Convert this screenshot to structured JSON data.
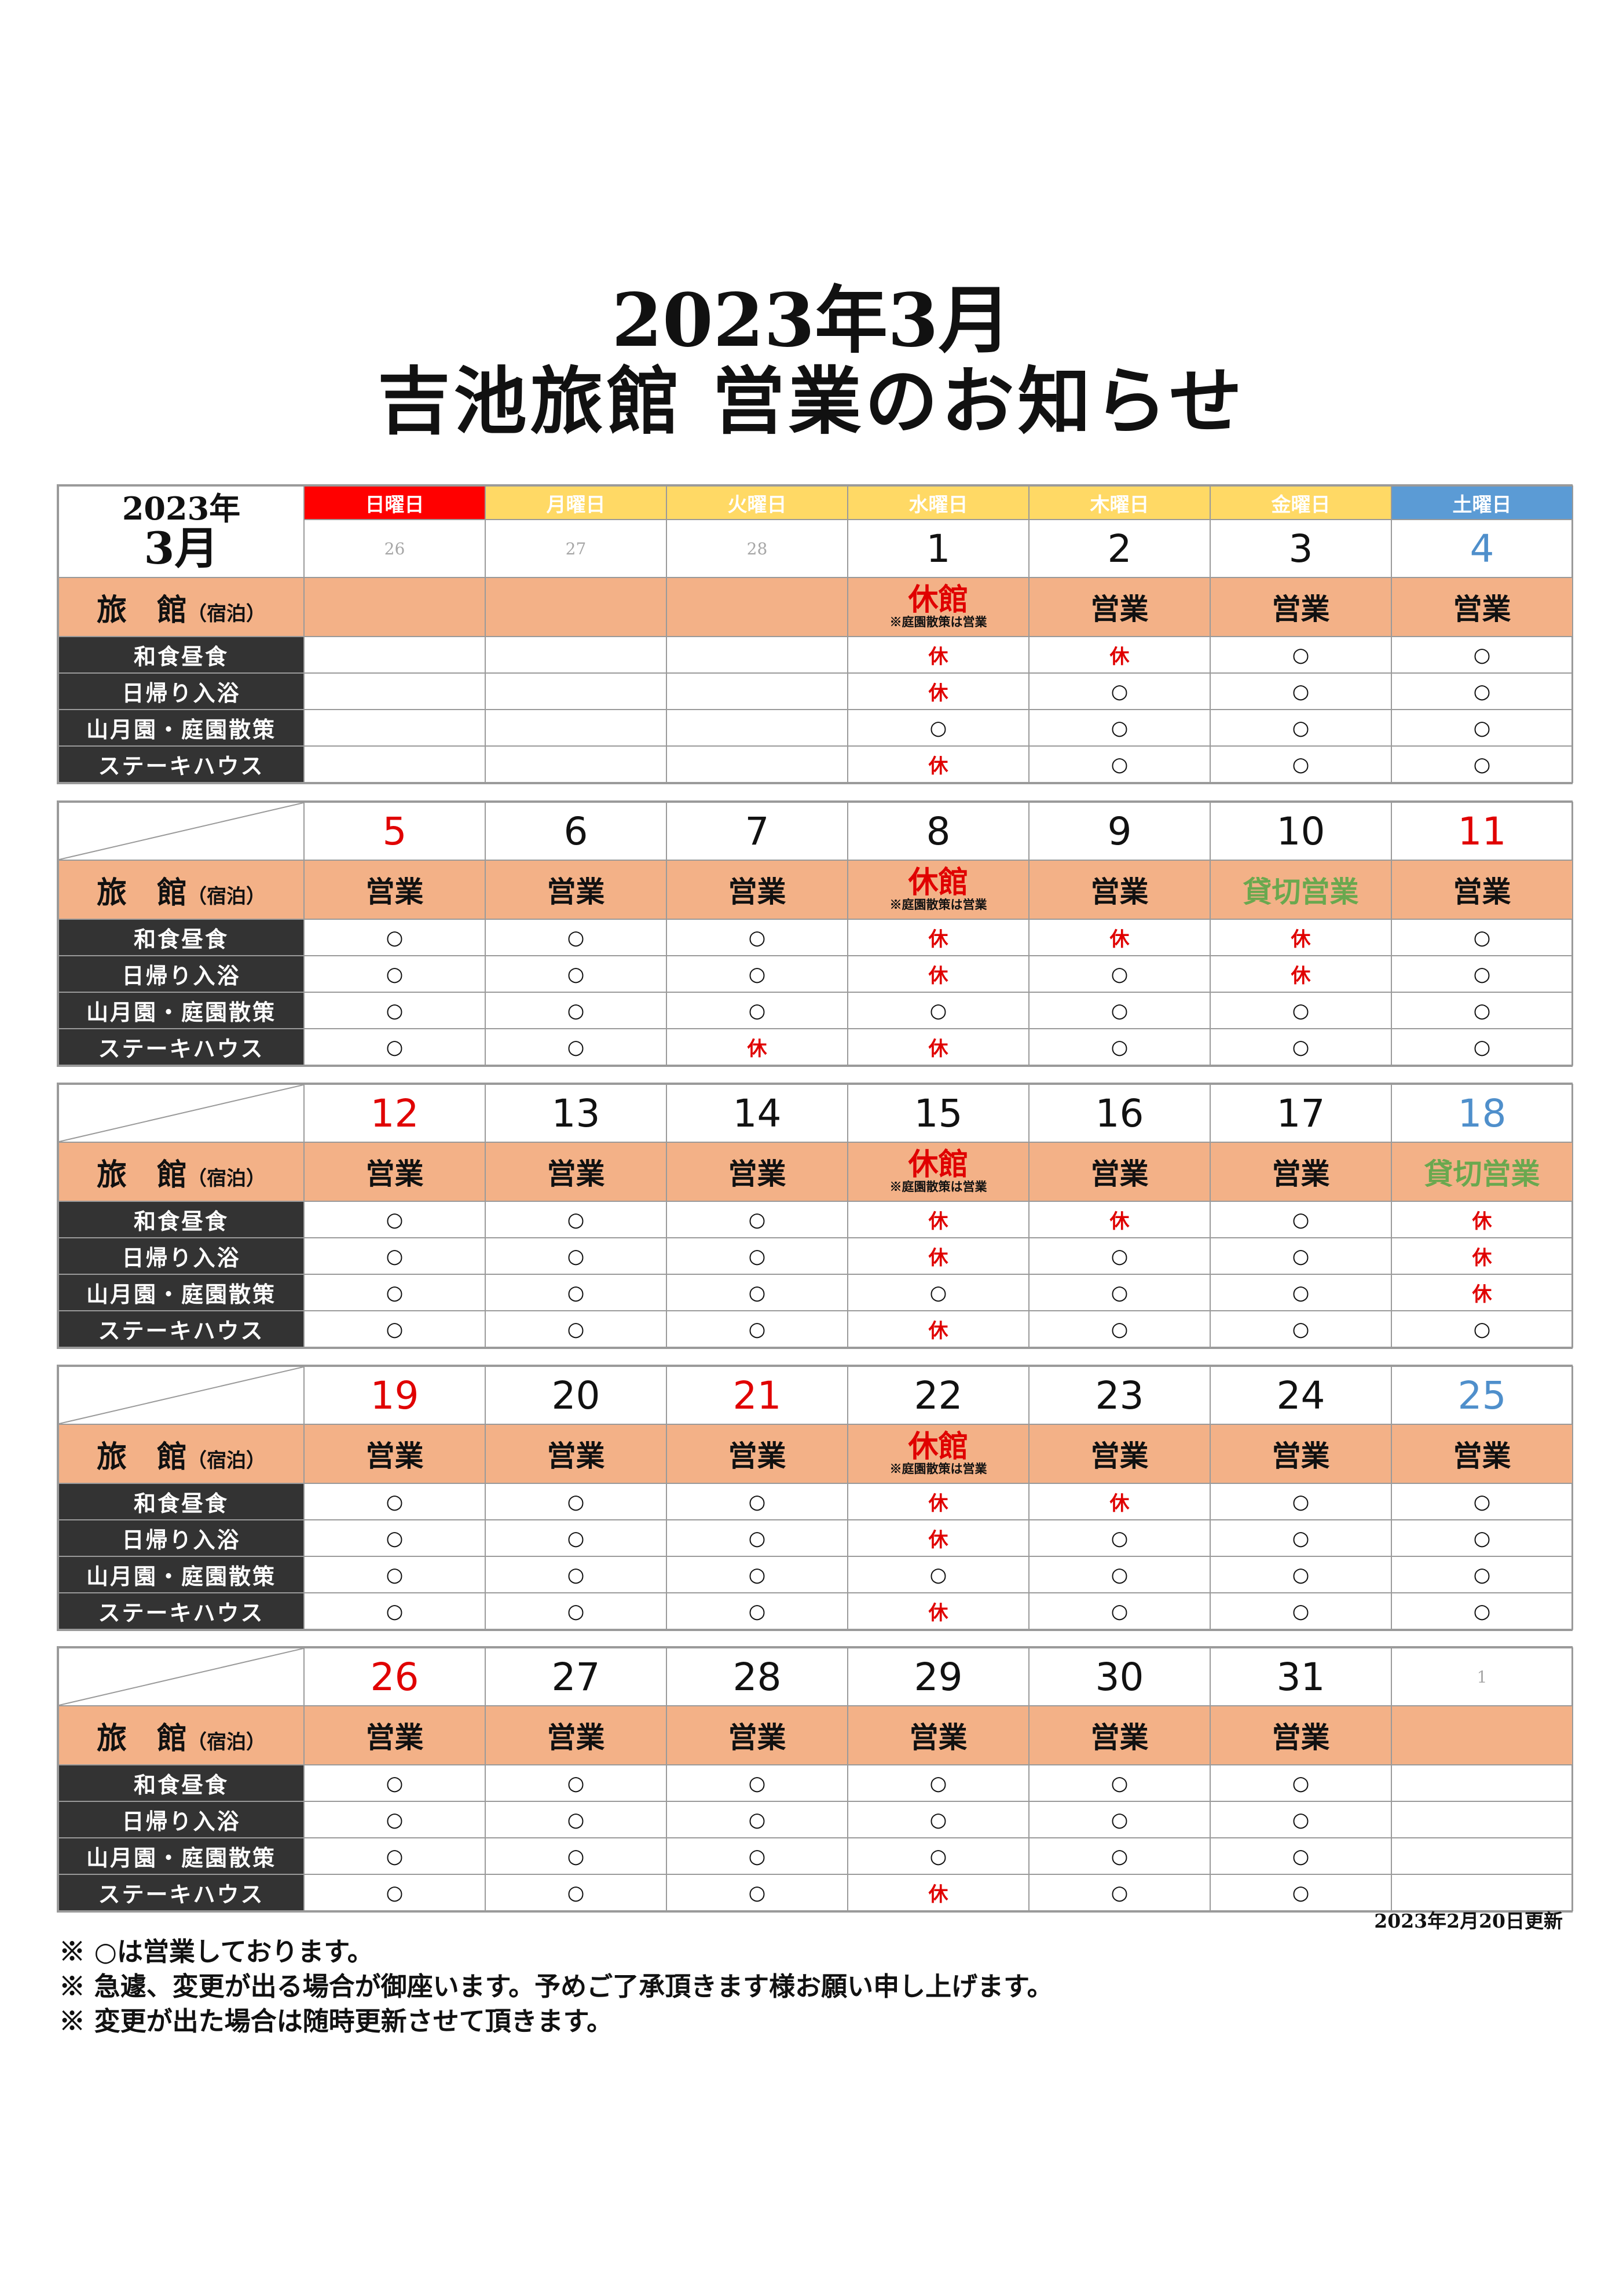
{
  "title_line1": "2023年3月",
  "title_line2": "吉池旅館 営業のお知らせ",
  "header": {
    "year": "2023年",
    "month": "3月",
    "weekdays": [
      "日曜日",
      "月曜日",
      "火曜日",
      "水曜日",
      "木曜日",
      "金曜日",
      "土曜日"
    ]
  },
  "row_labels": {
    "ryokan_main": "旅　館",
    "ryokan_sub": "（宿泊）",
    "services": [
      "和食昼食",
      "日帰り入浴",
      "山月園・庭園散策",
      "ステーキハウス"
    ]
  },
  "closed_note": "※庭園散策は営業",
  "colors": {
    "sunday": "#ff0000",
    "weekday": "#ffd965",
    "saturday": "#5b9bd5",
    "ryokan_row": "#f3b187",
    "label_dark": "#333333",
    "closed_text": "#e00000",
    "charter_text": "#6aa84f"
  },
  "weeks": [
    {
      "days": [
        "26",
        "27",
        "28",
        "1",
        "2",
        "3",
        "4"
      ],
      "day_styles": [
        "muted",
        "muted",
        "muted",
        "",
        "",
        "",
        "blue"
      ],
      "ryokan": [
        "",
        "",
        "",
        "休館",
        "営業",
        "営業",
        "営業"
      ],
      "services": [
        [
          "",
          "",
          "",
          "休",
          "休",
          "○",
          "○"
        ],
        [
          "",
          "",
          "",
          "休",
          "○",
          "○",
          "○"
        ],
        [
          "",
          "",
          "",
          "○",
          "○",
          "○",
          "○"
        ],
        [
          "",
          "",
          "",
          "休",
          "○",
          "○",
          "○"
        ]
      ]
    },
    {
      "days": [
        "5",
        "6",
        "7",
        "8",
        "9",
        "10",
        "11"
      ],
      "day_styles": [
        "red",
        "",
        "",
        "",
        "",
        "",
        "red"
      ],
      "ryokan": [
        "営業",
        "営業",
        "営業",
        "休館",
        "営業",
        "貸切営業",
        "営業"
      ],
      "services": [
        [
          "○",
          "○",
          "○",
          "休",
          "休",
          "休",
          "○"
        ],
        [
          "○",
          "○",
          "○",
          "休",
          "○",
          "休",
          "○"
        ],
        [
          "○",
          "○",
          "○",
          "○",
          "○",
          "○",
          "○"
        ],
        [
          "○",
          "○",
          "休",
          "休",
          "○",
          "○",
          "○"
        ]
      ]
    },
    {
      "days": [
        "12",
        "13",
        "14",
        "15",
        "16",
        "17",
        "18"
      ],
      "day_styles": [
        "red",
        "",
        "",
        "",
        "",
        "",
        "blue"
      ],
      "ryokan": [
        "営業",
        "営業",
        "営業",
        "休館",
        "営業",
        "営業",
        "貸切営業"
      ],
      "services": [
        [
          "○",
          "○",
          "○",
          "休",
          "休",
          "○",
          "休"
        ],
        [
          "○",
          "○",
          "○",
          "休",
          "○",
          "○",
          "休"
        ],
        [
          "○",
          "○",
          "○",
          "○",
          "○",
          "○",
          "休"
        ],
        [
          "○",
          "○",
          "○",
          "休",
          "○",
          "○",
          "○"
        ]
      ]
    },
    {
      "days": [
        "19",
        "20",
        "21",
        "22",
        "23",
        "24",
        "25"
      ],
      "day_styles": [
        "red",
        "",
        "red",
        "",
        "",
        "",
        "blue"
      ],
      "ryokan": [
        "営業",
        "営業",
        "営業",
        "休館",
        "営業",
        "営業",
        "営業"
      ],
      "services": [
        [
          "○",
          "○",
          "○",
          "休",
          "休",
          "○",
          "○"
        ],
        [
          "○",
          "○",
          "○",
          "休",
          "○",
          "○",
          "○"
        ],
        [
          "○",
          "○",
          "○",
          "○",
          "○",
          "○",
          "○"
        ],
        [
          "○",
          "○",
          "○",
          "休",
          "○",
          "○",
          "○"
        ]
      ]
    },
    {
      "days": [
        "26",
        "27",
        "28",
        "29",
        "30",
        "31",
        "1"
      ],
      "day_styles": [
        "red",
        "",
        "",
        "",
        "",
        "",
        "muted"
      ],
      "ryokan": [
        "営業",
        "営業",
        "営業",
        "営業",
        "営業",
        "営業",
        ""
      ],
      "services": [
        [
          "○",
          "○",
          "○",
          "○",
          "○",
          "○",
          ""
        ],
        [
          "○",
          "○",
          "○",
          "○",
          "○",
          "○",
          ""
        ],
        [
          "○",
          "○",
          "○",
          "○",
          "○",
          "○",
          ""
        ],
        [
          "○",
          "○",
          "○",
          "休",
          "○",
          "○",
          ""
        ]
      ]
    }
  ],
  "updated": "2023年2月20日更新",
  "footnotes": [
    "※ ○は営業しております。",
    "※ 急遽、変更が出る場合が御座います。予めご了承頂きます様お願い申し上げます。",
    "※ 変更が出た場合は随時更新させて頂きます。"
  ]
}
